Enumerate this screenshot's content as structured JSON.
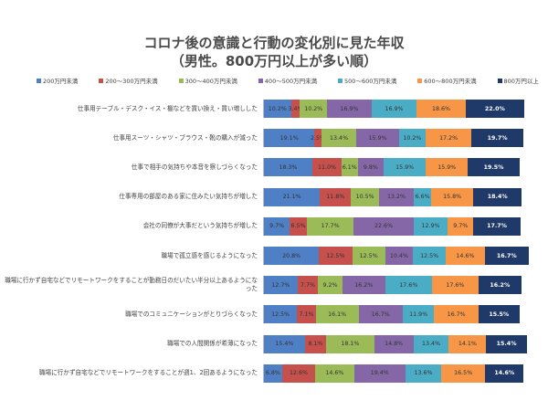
{
  "chart_data": {
    "type": "bar_stacked_horizontal",
    "title": "コロナ後の意識と行動の変化別に見た年収",
    "subtitle": "（男性。800万円以上が多い順）",
    "xlim": [
      0,
      100
    ],
    "categories": [
      "仕事用テーブル・デスク・イス・棚などを買い換え・買い増しした",
      "仕事用スーツ・シャツ・ブラウス・靴の購入が減った",
      "仕事で相手の気持ちや本音を察しづらくなった",
      "仕事専用の部屋のある家に住みたい気持ちが増した",
      "会社の同僚が大事だという気持ちが増した",
      "職場で孤立感を感じるようになった",
      "職場に行かず自宅などでリモートワークをすることが勤務日のだいたい半分以上あるようになった",
      "職場でのコミュニケーションがとりづらくなった",
      "職場での人間関係が希薄になった",
      "職場に行かず自宅などでリモートワークをすることが週1、2回あるようになった"
    ],
    "series": [
      {
        "name": "200万円未満",
        "color": "#4f7fc4",
        "values": [
          10.2,
          19.1,
          18.3,
          21.1,
          9.7,
          20.8,
          12.7,
          12.5,
          15.4,
          6.8
        ],
        "value_labels": [
          "10.2%",
          "19.1%",
          "18.3%",
          "21.1%",
          "9.7%",
          "20.8%",
          "12.7%",
          "12.5%",
          "15.4%",
          "6.8%"
        ]
      },
      {
        "name": "200～300万円未満",
        "color": "#c5504c",
        "values": [
          3.4,
          2.5,
          11.0,
          11.8,
          6.5,
          12.5,
          7.7,
          7.1,
          8.1,
          12.6
        ],
        "value_labels": [
          "3.4%",
          "2.5%",
          "11.0%",
          "11.8%",
          "6.5%",
          "12.5%",
          "7.7%",
          "7.1%",
          "8.1%",
          "12.6%"
        ]
      },
      {
        "name": "300～400万円未満",
        "color": "#9bbb59",
        "values": [
          10.2,
          13.4,
          6.1,
          10.5,
          17.7,
          12.5,
          9.2,
          16.1,
          18.1,
          14.6
        ],
        "value_labels": [
          "10.2%",
          "13.4%",
          "6.1%",
          "10.5%",
          "17.7%",
          "12.5%",
          "9.2%",
          "16.1%",
          "18.1%",
          "14.6%"
        ]
      },
      {
        "name": "400～500万円未満",
        "color": "#8567a8",
        "values": [
          16.9,
          15.9,
          9.8,
          13.2,
          22.6,
          10.4,
          16.2,
          16.7,
          14.8,
          19.4
        ],
        "value_labels": [
          "16.9%",
          "15.9%",
          "9.8%",
          "13.2%",
          "22.6%",
          "10.4%",
          "16.2%",
          "16.7%",
          "14.8%",
          "19.4%"
        ]
      },
      {
        "name": "500～600万円未満",
        "color": "#4bacc6",
        "values": [
          16.9,
          10.2,
          15.9,
          6.6,
          12.9,
          12.5,
          17.6,
          11.9,
          13.4,
          13.6
        ],
        "value_labels": [
          "16.9%",
          "10.2%",
          "15.9%",
          "6.6%",
          "12.9%",
          "12.5%",
          "17.6%",
          "11.9%",
          "13.4%",
          "13.6%"
        ]
      },
      {
        "name": "600～800万円未満",
        "color": "#f79646",
        "values": [
          18.6,
          17.2,
          15.9,
          15.8,
          9.7,
          14.6,
          17.6,
          16.7,
          14.1,
          16.5
        ],
        "value_labels": [
          "18.6%",
          "17.2%",
          "15.9%",
          "15.8%",
          "9.7%",
          "14.6%",
          "17.6%",
          "16.7%",
          "14.1%",
          "16.5%"
        ]
      },
      {
        "name": "800万円以上",
        "color": "#1f3a68",
        "values": [
          22.0,
          19.7,
          19.5,
          18.4,
          17.7,
          16.7,
          16.2,
          15.5,
          15.4,
          14.6
        ],
        "value_labels": [
          "22.0%",
          "19.7%",
          "19.5%",
          "18.4%",
          "17.7%",
          "16.7%",
          "16.2%",
          "15.5%",
          "15.4%",
          "14.6%"
        ]
      }
    ]
  }
}
